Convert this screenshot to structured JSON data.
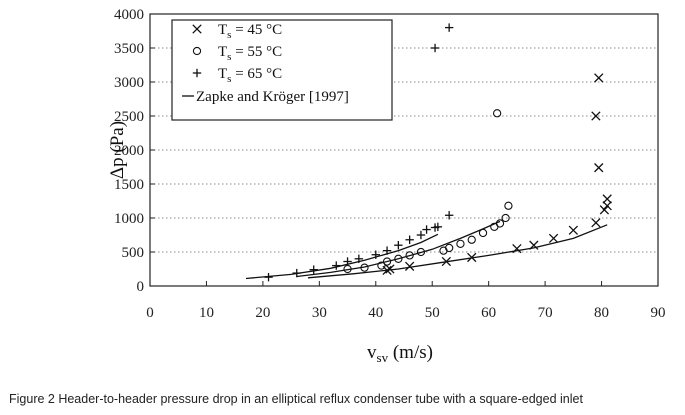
{
  "caption": "Figure 2  Header-to-header pressure drop in an elliptical reflux condenser tube with a square-edged inlet",
  "chart_data": {
    "type": "scatter",
    "xlabel_main": "v",
    "xlabel_sub": "sv",
    "xlabel_unit": " (m/s)",
    "ylabel": "Δp (Pa)",
    "xlim": [
      0,
      90
    ],
    "ylim": [
      0,
      4000
    ],
    "x_ticks": [
      0,
      10,
      20,
      30,
      40,
      50,
      60,
      70,
      80,
      90
    ],
    "y_ticks": [
      0,
      500,
      1000,
      1500,
      2000,
      2500,
      3000,
      3500,
      4000
    ],
    "grid": "horizontal-dotted",
    "legend_position": "top-left",
    "series": [
      {
        "name": "Ts = 45 °C",
        "legend_main": "T",
        "legend_sub": "s",
        "legend_rest": " = 45 °C",
        "marker": "x",
        "points": [
          [
            42,
            230
          ],
          [
            42.5,
            250
          ],
          [
            46,
            290
          ],
          [
            52.5,
            360
          ],
          [
            57,
            420
          ],
          [
            65,
            550
          ],
          [
            68,
            600
          ],
          [
            71.5,
            700
          ],
          [
            75,
            820
          ],
          [
            79,
            930
          ],
          [
            80.5,
            1120
          ],
          [
            81,
            1180
          ],
          [
            81,
            1280
          ],
          [
            79.5,
            1740
          ],
          [
            79,
            2500
          ],
          [
            79.5,
            3060
          ]
        ]
      },
      {
        "name": "Ts = 55 °C",
        "legend_main": "T",
        "legend_sub": "s",
        "legend_rest": " = 55 °C",
        "marker": "o",
        "points": [
          [
            35,
            250
          ],
          [
            38,
            270
          ],
          [
            41,
            300
          ],
          [
            42,
            360
          ],
          [
            44,
            400
          ],
          [
            46,
            450
          ],
          [
            48,
            500
          ],
          [
            52,
            520
          ],
          [
            53,
            560
          ],
          [
            55,
            620
          ],
          [
            57,
            680
          ],
          [
            59,
            780
          ],
          [
            61,
            870
          ],
          [
            62,
            920
          ],
          [
            63,
            1000
          ],
          [
            63.5,
            1180
          ],
          [
            61.5,
            2540
          ]
        ]
      },
      {
        "name": "Ts = 65 °C",
        "legend_main": "T",
        "legend_sub": "s",
        "legend_rest": " = 65 °C",
        "marker": "+",
        "points": [
          [
            21,
            130
          ],
          [
            26,
            190
          ],
          [
            29,
            240
          ],
          [
            33,
            300
          ],
          [
            35,
            360
          ],
          [
            37,
            400
          ],
          [
            40,
            460
          ],
          [
            42,
            520
          ],
          [
            44,
            600
          ],
          [
            46,
            680
          ],
          [
            48,
            750
          ],
          [
            49,
            830
          ],
          [
            50.5,
            860
          ],
          [
            51,
            870
          ],
          [
            53,
            1040
          ],
          [
            50.5,
            3500
          ],
          [
            53,
            3800
          ]
        ]
      },
      {
        "name": "Zapke and Kröger [1997]",
        "legend_label": "Zapke and Kröger [1997]",
        "marker": "line",
        "curves": [
          [
            [
              17,
              110
            ],
            [
              25,
              170
            ],
            [
              32,
              260
            ],
            [
              38,
              380
            ],
            [
              44,
              520
            ],
            [
              48,
              640
            ],
            [
              51,
              760
            ]
          ],
          [
            [
              26,
              140
            ],
            [
              32,
              200
            ],
            [
              38,
              280
            ],
            [
              44,
              400
            ],
            [
              50,
              540
            ],
            [
              55,
              700
            ],
            [
              59,
              840
            ],
            [
              62,
              950
            ]
          ],
          [
            [
              28,
              120
            ],
            [
              36,
              180
            ],
            [
              44,
              250
            ],
            [
              52,
              350
            ],
            [
              60,
              450
            ],
            [
              68,
              560
            ],
            [
              75,
              700
            ],
            [
              81,
              900
            ]
          ]
        ]
      }
    ]
  }
}
